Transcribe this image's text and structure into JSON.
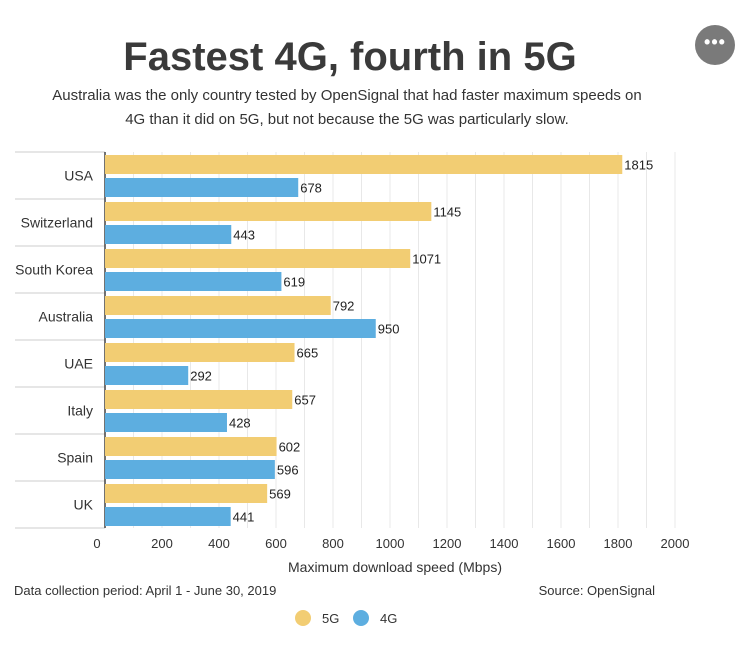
{
  "more_button_icon": "ellipsis-icon",
  "footer": {
    "left": "Data collection period: April 1 - June 30, 2019",
    "right": "Source: OpenSignal"
  },
  "chart_data": {
    "type": "bar",
    "orientation": "horizontal",
    "title": "Fastest 4G, fourth in 5G",
    "subtitle_lines": [
      "Australia was the only country tested by OpenSignal that had faster maximum speeds on",
      "4G than it did on 5G, but not because the 5G was particularly slow."
    ],
    "categories": [
      "USA",
      "Switzerland",
      "South Korea",
      "Australia",
      "UAE",
      "Italy",
      "Spain",
      "UK"
    ],
    "series": [
      {
        "name": "5G",
        "color": "#f2cd73",
        "values": [
          1815,
          1145,
          1071,
          792,
          665,
          657,
          602,
          569
        ]
      },
      {
        "name": "4G",
        "color": "#5daee0",
        "values": [
          678,
          443,
          619,
          950,
          292,
          428,
          596,
          441
        ]
      }
    ],
    "xlabel": "Maximum download speed (Mbps)",
    "xlim": [
      0,
      2000
    ],
    "xticks": [
      0,
      200,
      400,
      600,
      800,
      1000,
      1200,
      1400,
      1600,
      1800,
      2000
    ],
    "grid": true,
    "data_labels": true,
    "legend_position": "bottom"
  }
}
